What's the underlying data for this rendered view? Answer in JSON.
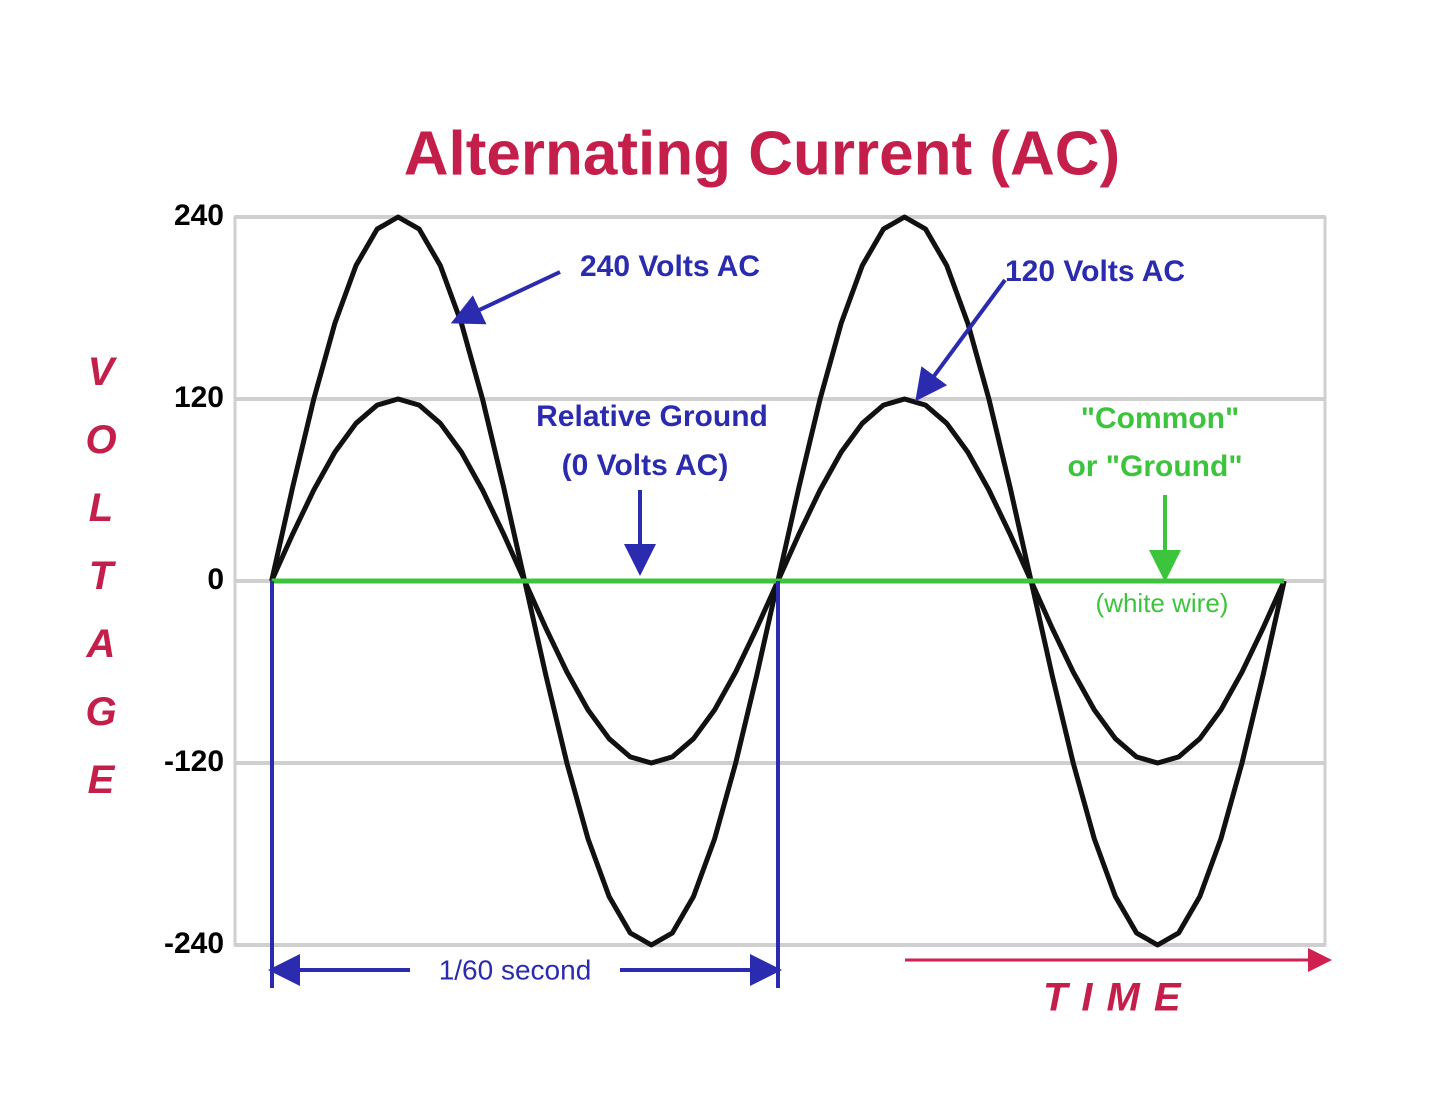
{
  "chart_data": {
    "type": "line",
    "title": "Alternating Current (AC)",
    "y_label": "VOLTAGE",
    "x_label": "TIME",
    "annotations": [
      "240 Volts AC",
      "120 Volts AC",
      "Relative Ground",
      "(0 Volts AC)",
      "\"Common\"",
      "or \"Ground\"",
      "(white wire)",
      "1/60 second"
    ],
    "x": [
      0,
      15,
      30,
      45,
      60,
      75,
      90,
      105,
      120,
      135,
      150,
      165,
      180,
      195,
      210,
      225,
      240,
      255,
      270,
      285,
      300,
      315,
      330,
      345,
      360,
      375,
      390,
      405,
      420,
      435,
      450,
      465,
      480,
      495,
      510,
      525,
      540,
      555,
      570,
      585,
      600,
      615,
      630,
      645,
      660,
      675,
      690,
      705,
      720
    ],
    "series": [
      {
        "color": "#111111",
        "values": [
          0,
          62,
          120,
          170,
          208,
          232,
          240,
          232,
          208,
          170,
          120,
          62,
          0,
          -62,
          -120,
          -170,
          -208,
          -232,
          -240,
          -232,
          -208,
          -170,
          -120,
          -62,
          0,
          62,
          120,
          170,
          208,
          232,
          240,
          232,
          208,
          170,
          120,
          62,
          0,
          -62,
          -120,
          -170,
          -208,
          -232,
          -240,
          -232,
          -208,
          -170,
          -120,
          -62,
          0
        ]
      },
      {
        "color": "#111111",
        "values": [
          0,
          31,
          60,
          85,
          104,
          116,
          120,
          116,
          104,
          85,
          60,
          31,
          0,
          -31,
          -60,
          -85,
          -104,
          -116,
          -120,
          -116,
          -104,
          -85,
          -60,
          -31,
          0,
          31,
          60,
          85,
          104,
          116,
          120,
          116,
          104,
          85,
          60,
          31,
          0,
          -31,
          -60,
          -85,
          -104,
          -116,
          -120,
          -116,
          -104,
          -85,
          -60,
          -31,
          0
        ]
      },
      {
        "color": "#3cc43c",
        "values": [
          0,
          0,
          0,
          0,
          0,
          0,
          0,
          0,
          0,
          0,
          0,
          0,
          0,
          0,
          0,
          0,
          0,
          0,
          0,
          0,
          0,
          0,
          0,
          0,
          0,
          0,
          0,
          0,
          0,
          0,
          0,
          0,
          0,
          0,
          0,
          0,
          0,
          0,
          0,
          0,
          0,
          0,
          0,
          0,
          0,
          0,
          0,
          0,
          0
        ]
      }
    ],
    "xlim": [
      -26,
      749
    ],
    "ylim": [
      -240,
      240
    ],
    "yticks": [
      240,
      120,
      0,
      -120,
      -240
    ],
    "grid": true
  }
}
